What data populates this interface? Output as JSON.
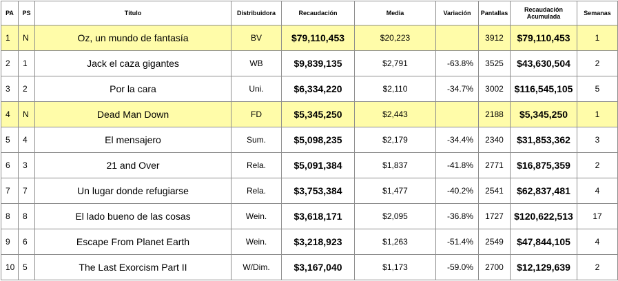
{
  "headers": {
    "pa": "PA",
    "ps": "PS",
    "title": "Título",
    "distributor": "Distribuidora",
    "gross": "Recaudación",
    "average": "Media",
    "change": "Variación",
    "screens": "Pantallas",
    "total_line1": "Recaudación",
    "total_line2": "Acumulada",
    "weeks": "Semanas"
  },
  "rows": [
    {
      "pa": "1",
      "ps": "N",
      "title": "Oz, un mundo de fantasía",
      "distributor": "BV",
      "gross": "$79,110,453",
      "average": "$20,223",
      "change": "",
      "screens": "3912",
      "total": "$79,110,453",
      "weeks": "1",
      "highlight": true
    },
    {
      "pa": "2",
      "ps": "1",
      "title": "Jack el caza gigantes",
      "distributor": "WB",
      "gross": "$9,839,135",
      "average": "$2,791",
      "change": "-63.8%",
      "screens": "3525",
      "total": "$43,630,504",
      "weeks": "2",
      "highlight": false
    },
    {
      "pa": "3",
      "ps": "2",
      "title": "Por la cara",
      "distributor": "Uni.",
      "gross": "$6,334,220",
      "average": "$2,110",
      "change": "-34.7%",
      "screens": "3002",
      "total": "$116,545,105",
      "weeks": "5",
      "highlight": false
    },
    {
      "pa": "4",
      "ps": "N",
      "title": "Dead Man Down",
      "distributor": "FD",
      "gross": "$5,345,250",
      "average": "$2,443",
      "change": "",
      "screens": "2188",
      "total": "$5,345,250",
      "weeks": "1",
      "highlight": true
    },
    {
      "pa": "5",
      "ps": "4",
      "title": "El mensajero",
      "distributor": "Sum.",
      "gross": "$5,098,235",
      "average": "$2,179",
      "change": "-34.4%",
      "screens": "2340",
      "total": "$31,853,362",
      "weeks": "3",
      "highlight": false
    },
    {
      "pa": "6",
      "ps": "3",
      "title": "21 and Over",
      "distributor": "Rela.",
      "gross": "$5,091,384",
      "average": "$1,837",
      "change": "-41.8%",
      "screens": "2771",
      "total": "$16,875,359",
      "weeks": "2",
      "highlight": false
    },
    {
      "pa": "7",
      "ps": "7",
      "title": "Un lugar donde refugiarse",
      "distributor": "Rela.",
      "gross": "$3,753,384",
      "average": "$1,477",
      "change": "-40.2%",
      "screens": "2541",
      "total": "$62,837,481",
      "weeks": "4",
      "highlight": false
    },
    {
      "pa": "8",
      "ps": "8",
      "title": "El lado bueno de las cosas",
      "distributor": "Wein.",
      "gross": "$3,618,171",
      "average": "$2,095",
      "change": "-36.8%",
      "screens": "1727",
      "total": "$120,622,513",
      "weeks": "17",
      "highlight": false
    },
    {
      "pa": "9",
      "ps": "6",
      "title": "Escape From Planet Earth",
      "distributor": "Wein.",
      "gross": "$3,218,923",
      "average": "$1,263",
      "change": "-51.4%",
      "screens": "2549",
      "total": "$47,844,105",
      "weeks": "4",
      "highlight": false
    },
    {
      "pa": "10",
      "ps": "5",
      "title": "The Last Exorcism Part II",
      "distributor": "W/Dim.",
      "gross": "$3,167,040",
      "average": "$1,173",
      "change": "-59.0%",
      "screens": "2700",
      "total": "$12,129,639",
      "weeks": "2",
      "highlight": false
    }
  ]
}
